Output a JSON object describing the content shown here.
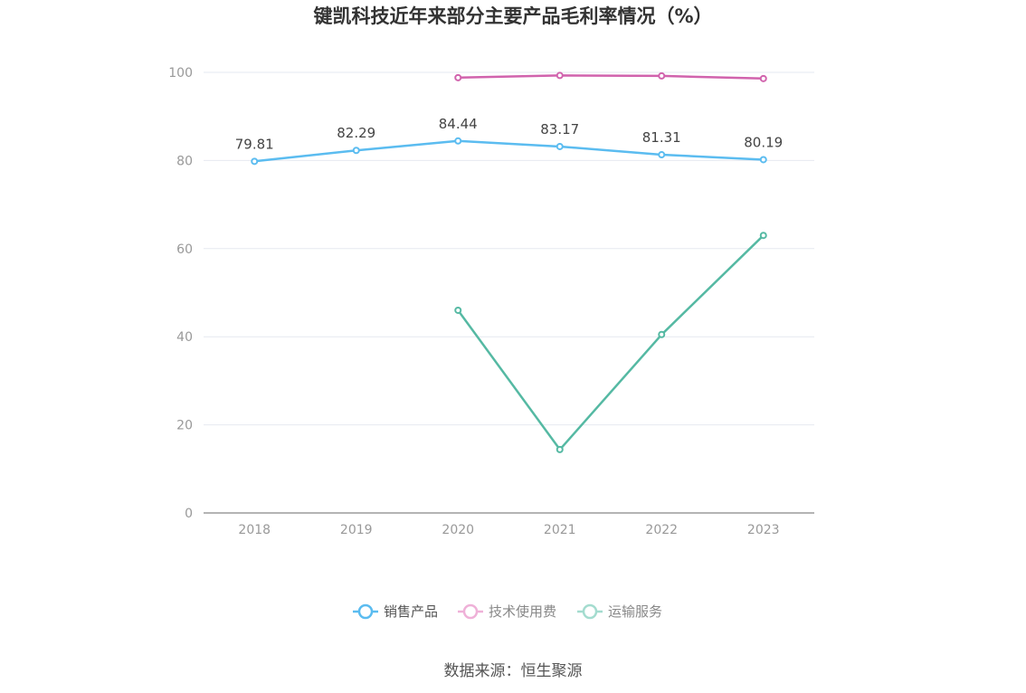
{
  "chart_data": {
    "type": "line",
    "title": "键凯科技近年来部分主要产品毛利率情况（%）",
    "categories": [
      "2018",
      "2019",
      "2020",
      "2021",
      "2022",
      "2023"
    ],
    "ylim": [
      0,
      100
    ],
    "yticks": [
      0,
      20,
      40,
      60,
      80,
      100
    ],
    "grid": true,
    "legend_position": "bottom",
    "series": [
      {
        "name": "销售产品",
        "color": "#5bbcf0",
        "labeled": true,
        "values": [
          79.81,
          82.29,
          84.44,
          83.17,
          81.31,
          80.19
        ],
        "labels": [
          "79.81",
          "82.29",
          "84.44",
          "83.17",
          "81.31",
          "80.19"
        ]
      },
      {
        "name": "技术使用费",
        "color": "#d163ad",
        "labeled": false,
        "values": [
          null,
          null,
          98.8,
          99.3,
          99.2,
          98.6
        ]
      },
      {
        "name": "运输服务",
        "color": "#55b9a3",
        "labeled": false,
        "values": [
          null,
          null,
          46.0,
          14.4,
          40.5,
          63.0
        ]
      }
    ]
  },
  "legend": {
    "items": [
      {
        "label": "销售产品",
        "color": "#5bbcf0",
        "text_color": "#555555"
      },
      {
        "label": "技术使用费",
        "color": "#efb1d8",
        "text_color": "#888888"
      },
      {
        "label": "运输服务",
        "color": "#a4dccf",
        "text_color": "#888888"
      }
    ]
  },
  "source": "数据来源：恒生聚源"
}
